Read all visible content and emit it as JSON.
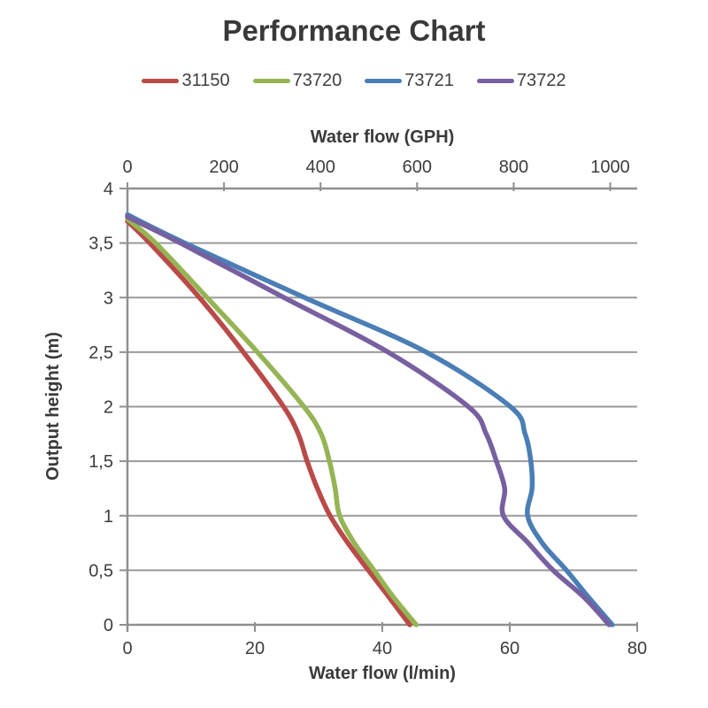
{
  "chart_data": {
    "type": "line",
    "title": "Performance Chart",
    "legend_position": "top",
    "grid": true,
    "top_axis": {
      "label": "Water flow (GPH)",
      "ticks": [
        0,
        200,
        400,
        600,
        800,
        1000
      ],
      "gph_per_lmin": 13.198
    },
    "bottom_axis": {
      "label": "Water flow (l/min)",
      "ticks": [
        0,
        20,
        40,
        60,
        80
      ],
      "range": [
        0,
        80
      ]
    },
    "y_axis": {
      "label": "Output height (m)",
      "range": [
        0,
        4
      ],
      "tick_values": [
        4,
        3.5,
        3,
        2.5,
        2,
        1.5,
        1,
        0.5,
        0
      ],
      "tick_labels": [
        "4",
        "3,5",
        "3",
        "2,5",
        "2",
        "1,5",
        "1",
        "0,5",
        "0"
      ]
    },
    "colors": {
      "grid": "#9a9a9a",
      "axis": "#8f8f8f",
      "text": "#3d3d3d"
    },
    "series": [
      {
        "name": "31150",
        "color": "#b94a48",
        "points": [
          [
            0,
            3.7
          ],
          [
            3.5,
            3.5
          ],
          [
            11.3,
            3.0
          ],
          [
            18.2,
            2.5
          ],
          [
            24.5,
            2.0
          ],
          [
            26.8,
            1.75
          ],
          [
            28.2,
            1.5
          ],
          [
            29.8,
            1.25
          ],
          [
            31.8,
            1.0
          ],
          [
            34.6,
            0.75
          ],
          [
            37.8,
            0.5
          ],
          [
            41.1,
            0.25
          ],
          [
            44.3,
            0
          ]
        ]
      },
      {
        "name": "73720",
        "color": "#95b554",
        "points": [
          [
            0,
            3.72
          ],
          [
            4.4,
            3.5
          ],
          [
            12.5,
            3.0
          ],
          [
            20.4,
            2.5
          ],
          [
            27.7,
            2.0
          ],
          [
            30.4,
            1.75
          ],
          [
            31.7,
            1.5
          ],
          [
            32.6,
            1.25
          ],
          [
            33.3,
            1.0
          ],
          [
            35.6,
            0.75
          ],
          [
            38.7,
            0.5
          ],
          [
            41.8,
            0.25
          ],
          [
            45.3,
            0
          ]
        ]
      },
      {
        "name": "73721",
        "color": "#4a7eb5",
        "points": [
          [
            0,
            3.76
          ],
          [
            9.0,
            3.5
          ],
          [
            27.8,
            3.0
          ],
          [
            46.9,
            2.5
          ],
          [
            60.1,
            2.0
          ],
          [
            62.4,
            1.75
          ],
          [
            63.3,
            1.5
          ],
          [
            63.5,
            1.25
          ],
          [
            62.8,
            1.0
          ],
          [
            65.1,
            0.75
          ],
          [
            68.9,
            0.5
          ],
          [
            72.4,
            0.25
          ],
          [
            76.1,
            0
          ]
        ]
      },
      {
        "name": "73722",
        "color": "#7760a0",
        "points": [
          [
            0,
            3.74
          ],
          [
            8.3,
            3.5
          ],
          [
            24.6,
            3.0
          ],
          [
            40.9,
            2.5
          ],
          [
            53.5,
            2.0
          ],
          [
            56.3,
            1.75
          ],
          [
            57.9,
            1.5
          ],
          [
            59.2,
            1.25
          ],
          [
            59.0,
            1.0
          ],
          [
            62.9,
            0.75
          ],
          [
            66.8,
            0.5
          ],
          [
            71.7,
            0.25
          ],
          [
            75.6,
            0
          ]
        ]
      }
    ]
  }
}
